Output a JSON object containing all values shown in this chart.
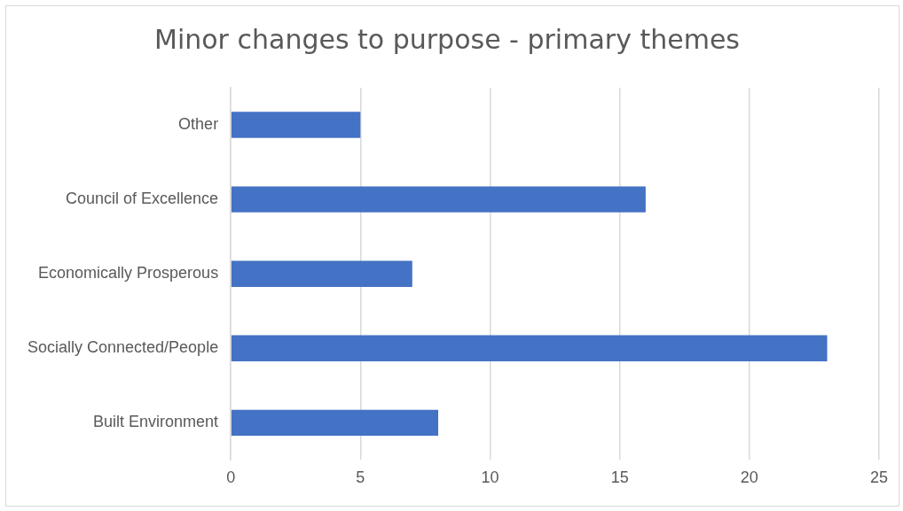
{
  "chart_data": {
    "type": "bar",
    "orientation": "horizontal",
    "title": "Minor changes to purpose - primary themes",
    "categories": [
      "Other",
      "Council of Excellence",
      "Economically Prosperous",
      "Socially Connected/People",
      "Built Environment"
    ],
    "values": [
      5,
      16,
      7,
      23,
      8
    ],
    "color": "#4472c4",
    "xlim": [
      0,
      25
    ],
    "xticks": [
      0,
      5,
      10,
      15,
      20,
      25
    ],
    "grid": "x",
    "legend": false
  }
}
